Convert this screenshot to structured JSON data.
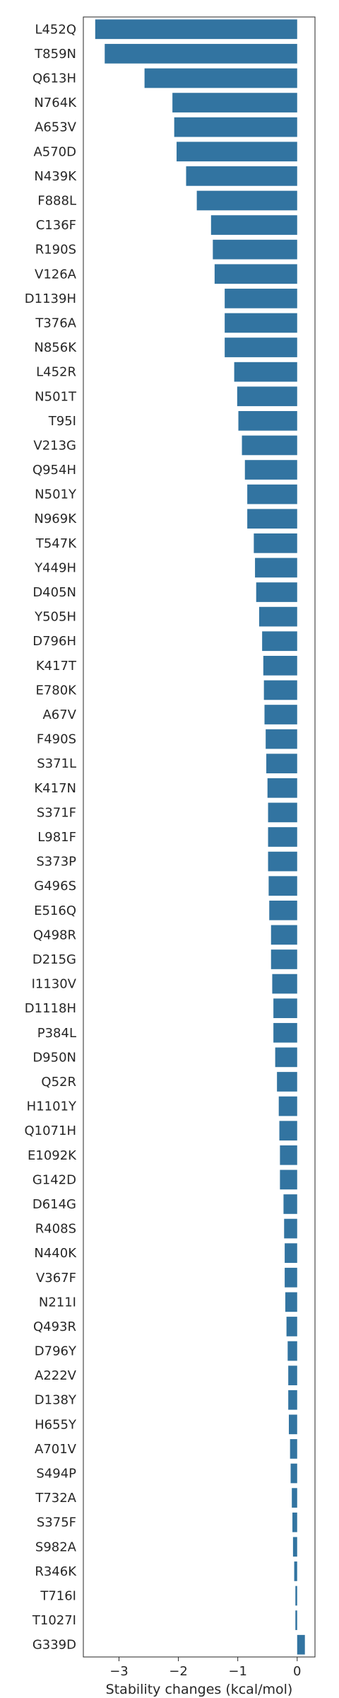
{
  "chart_data": {
    "type": "bar",
    "orientation": "horizontal",
    "xlabel": "Stability changes (kcal/mol)",
    "ylabel": "",
    "xlim": [
      -3.6,
      0.3
    ],
    "xticks": [
      -3,
      -2,
      -1,
      0
    ],
    "xtick_labels": [
      "−3",
      "−2",
      "−1",
      "0"
    ],
    "bar_color": "#3274a1",
    "grid": false,
    "categories": [
      "L452Q",
      "T859N",
      "Q613H",
      "N764K",
      "A653V",
      "A570D",
      "N439K",
      "F888L",
      "C136F",
      "R190S",
      "V126A",
      "D1139H",
      "T376A",
      "N856K",
      "L452R",
      "N501T",
      "T95I",
      "V213G",
      "Q954H",
      "N501Y",
      "N969K",
      "T547K",
      "Y449H",
      "D405N",
      "Y505H",
      "D796H",
      "K417T",
      "E780K",
      "A67V",
      "F490S",
      "S371L",
      "K417N",
      "S371F",
      "L981F",
      "S373P",
      "G496S",
      "E516Q",
      "Q498R",
      "D215G",
      "I1130V",
      "D1118H",
      "P384L",
      "D950N",
      "Q52R",
      "H1101Y",
      "Q1071H",
      "E1092K",
      "G142D",
      "D614G",
      "R408S",
      "N440K",
      "V367F",
      "N211I",
      "Q493R",
      "D796Y",
      "A222V",
      "D138Y",
      "H655Y",
      "A701V",
      "S494P",
      "T732A",
      "S375F",
      "S982A",
      "R346K",
      "T716I",
      "T1027I",
      "G339D"
    ],
    "values": [
      -3.4,
      -3.24,
      -2.57,
      -2.1,
      -2.07,
      -2.03,
      -1.87,
      -1.69,
      -1.45,
      -1.42,
      -1.39,
      -1.22,
      -1.22,
      -1.22,
      -1.06,
      -1.01,
      -0.99,
      -0.93,
      -0.88,
      -0.84,
      -0.84,
      -0.73,
      -0.71,
      -0.69,
      -0.64,
      -0.59,
      -0.57,
      -0.56,
      -0.55,
      -0.53,
      -0.52,
      -0.5,
      -0.49,
      -0.49,
      -0.49,
      -0.48,
      -0.47,
      -0.44,
      -0.44,
      -0.42,
      -0.4,
      -0.4,
      -0.37,
      -0.34,
      -0.31,
      -0.3,
      -0.29,
      -0.29,
      -0.23,
      -0.22,
      -0.21,
      -0.21,
      -0.2,
      -0.18,
      -0.16,
      -0.15,
      -0.15,
      -0.14,
      -0.12,
      -0.11,
      -0.09,
      -0.08,
      -0.07,
      -0.05,
      -0.03,
      -0.03,
      0.13
    ]
  }
}
